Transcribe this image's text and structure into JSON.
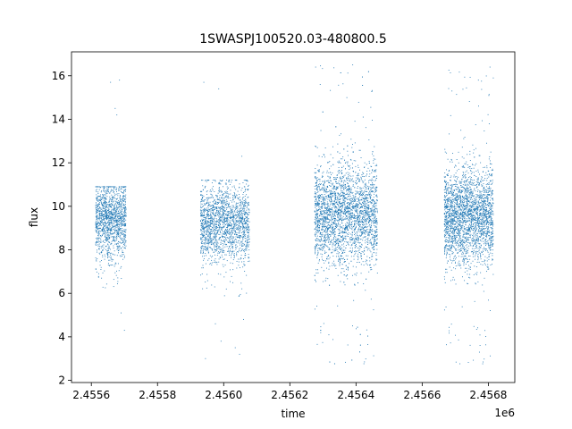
{
  "chart_data": {
    "type": "scatter",
    "title": "1SWASPJ100520.03-480800.5",
    "xlabel": "time",
    "ylabel": "flux",
    "x_offset_label": "1e6",
    "xlim": [
      2455540,
      2456880
    ],
    "ylim": [
      1.9,
      17.1
    ],
    "xticks": [
      2455600,
      2455800,
      2456000,
      2456200,
      2456400,
      2456600,
      2456800
    ],
    "xtick_labels": [
      "2.4556",
      "2.4558",
      "2.4560",
      "2.4562",
      "2.4564",
      "2.4566",
      "2.4568"
    ],
    "yticks": [
      2,
      4,
      6,
      8,
      10,
      12,
      14,
      16
    ],
    "ytick_labels": [
      "2",
      "4",
      "6",
      "8",
      "10",
      "12",
      "14",
      "16"
    ],
    "grid": false,
    "marker_color": "#1f77b4",
    "clusters": [
      {
        "x_range": [
          2455613,
          2455705
        ],
        "flux_center": 9.4,
        "flux_spread": 1.6,
        "flux_min": 6.2,
        "flux_max": 10.9,
        "points": 1400
      },
      {
        "x_range": [
          2455930,
          2456078
        ],
        "flux_center": 9.2,
        "flux_spread": 1.6,
        "flux_min": 5.8,
        "flux_max": 11.2,
        "points": 1800
      },
      {
        "x_range": [
          2456275,
          2456465
        ],
        "flux_center": 9.6,
        "flux_spread": 2.1,
        "flux_min": 2.6,
        "flux_max": 16.5,
        "points": 3200
      },
      {
        "x_range": [
          2456667,
          2456815
        ],
        "flux_center": 9.5,
        "flux_spread": 2.0,
        "flux_min": 2.6,
        "flux_max": 16.3,
        "points": 2600
      }
    ],
    "outliers": [
      {
        "x": 2455658,
        "y": 15.7
      },
      {
        "x": 2455685,
        "y": 15.8
      },
      {
        "x": 2455672,
        "y": 14.5
      },
      {
        "x": 2455677,
        "y": 14.2
      },
      {
        "x": 2455700,
        "y": 4.3
      },
      {
        "x": 2455690,
        "y": 5.1
      },
      {
        "x": 2455940,
        "y": 15.7
      },
      {
        "x": 2455985,
        "y": 15.4
      },
      {
        "x": 2455975,
        "y": 4.6
      },
      {
        "x": 2455992,
        "y": 3.8
      },
      {
        "x": 2456035,
        "y": 3.5
      },
      {
        "x": 2456048,
        "y": 3.2
      },
      {
        "x": 2456060,
        "y": 4.8
      },
      {
        "x": 2456055,
        "y": 12.3
      },
      {
        "x": 2455945,
        "y": 3.0
      },
      {
        "x": 2456278,
        "y": 16.4
      },
      {
        "x": 2456390,
        "y": 16.5
      },
      {
        "x": 2456690,
        "y": 15.3
      },
      {
        "x": 2456770,
        "y": 15.8
      },
      {
        "x": 2456805,
        "y": 16.4
      },
      {
        "x": 2456815,
        "y": 15.9
      }
    ]
  }
}
